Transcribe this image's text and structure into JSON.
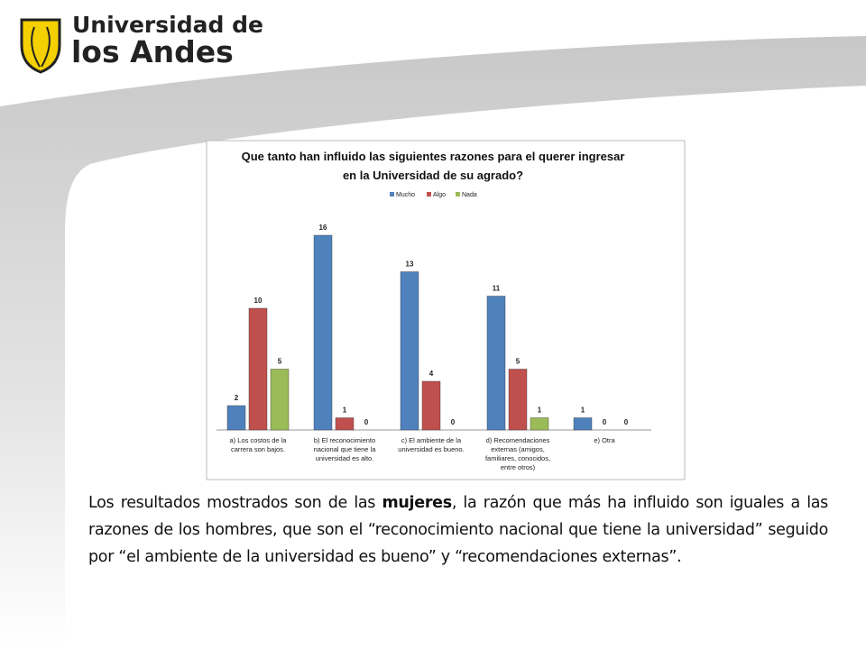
{
  "logo": {
    "line1": "Universidad de",
    "line2": "los Andes"
  },
  "chart_data": {
    "type": "bar",
    "title": "Que tanto han influido las siguientes razones para el querer ingresar en la Universidad de su agrado?",
    "categories": [
      "a) Los costos de la carrera son bajos.",
      "b) El reconocimiento nacional que tiene la universidad es alto.",
      "c) El ambiente de la universidad es bueno.",
      "d) Recomendaciones externas (amigos, familiares, conocidos, entre otros)",
      "e) Otra"
    ],
    "series": [
      {
        "name": "Mucho",
        "color": "#4f81bd",
        "values": [
          2,
          16,
          13,
          11,
          1
        ]
      },
      {
        "name": "Algo",
        "color": "#c0504d",
        "values": [
          10,
          1,
          4,
          5,
          0
        ]
      },
      {
        "name": "Nada",
        "color": "#9bbb59",
        "values": [
          5,
          0,
          0,
          1,
          0
        ]
      }
    ],
    "legend": "top"
  },
  "paragraph": [
    "Los resultados mostrados son de las ",
    "mujeres",
    ", la razón que más ha influido son iguales a las razones de los hombres, que son el “reconocimiento nacional que tiene la universidad” seguido por “el ambiente de la universidad es bueno” y “recomendaciones externas”."
  ]
}
